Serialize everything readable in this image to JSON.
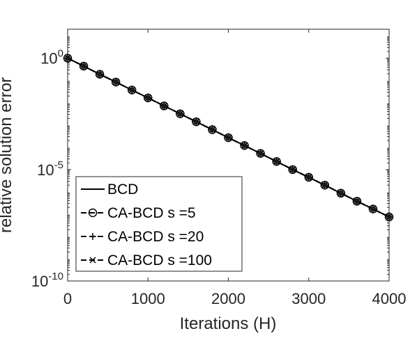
{
  "chart_data": {
    "type": "line",
    "title": "",
    "xlabel": "Iterations (H)",
    "ylabel": "relative solution error",
    "xlim": [
      0,
      4000
    ],
    "ylim_exponent": [
      -10,
      1.3
    ],
    "yscale": "log",
    "grid": false,
    "legend_position": "bottom-left",
    "x_ticks": [
      "0",
      "1000",
      "2000",
      "3000",
      "4000"
    ],
    "y_ticks": [
      {
        "base": "10",
        "exp": "0"
      },
      {
        "base": "10",
        "exp": "-5"
      },
      {
        "base": "10",
        "exp": "-10"
      }
    ],
    "x": [
      0,
      200,
      400,
      600,
      800,
      1000,
      1200,
      1400,
      1600,
      1800,
      2000,
      2200,
      2400,
      2600,
      2800,
      3000,
      3200,
      3400,
      3600,
      3800,
      4000
    ],
    "series": [
      {
        "name": "BCD",
        "marker": "none",
        "line": "solid",
        "y": [
          1,
          0.44,
          0.19,
          0.085,
          0.037,
          0.0165,
          0.0072,
          0.0032,
          0.0014,
          0.00062,
          0.00027,
          0.00012,
          5.3e-05,
          2.3e-05,
          1e-05,
          4.5e-06,
          2e-06,
          8.7e-07,
          3.8e-07,
          1.7e-07,
          7.5e-08
        ]
      },
      {
        "name": "CA-BCD s =5",
        "marker": "circle",
        "line": "dashed",
        "y": [
          1,
          0.44,
          0.19,
          0.085,
          0.037,
          0.0165,
          0.0072,
          0.0032,
          0.0014,
          0.00062,
          0.00027,
          0.00012,
          5.3e-05,
          2.3e-05,
          1e-05,
          4.5e-06,
          2e-06,
          8.7e-07,
          3.8e-07,
          1.7e-07,
          7.5e-08
        ]
      },
      {
        "name": "CA-BCD s =20",
        "marker": "plus",
        "line": "dashed",
        "y": [
          1,
          0.44,
          0.19,
          0.085,
          0.037,
          0.0165,
          0.0072,
          0.0032,
          0.0014,
          0.00062,
          0.00027,
          0.00012,
          5.3e-05,
          2.3e-05,
          1e-05,
          4.5e-06,
          2e-06,
          8.7e-07,
          3.8e-07,
          1.7e-07,
          7.5e-08
        ]
      },
      {
        "name": "CA-BCD s =100",
        "marker": "x",
        "line": "dashed",
        "y": [
          1,
          0.44,
          0.19,
          0.085,
          0.037,
          0.0165,
          0.0072,
          0.0032,
          0.0014,
          0.00062,
          0.00027,
          0.00012,
          5.3e-05,
          2.3e-05,
          1e-05,
          4.5e-06,
          2e-06,
          8.7e-07,
          3.8e-07,
          1.7e-07,
          7.5e-08
        ]
      }
    ],
    "colors": {
      "line": "#000000",
      "axis": "#262626",
      "marker_face": "#1a1a1a",
      "background": "#ffffff"
    }
  }
}
